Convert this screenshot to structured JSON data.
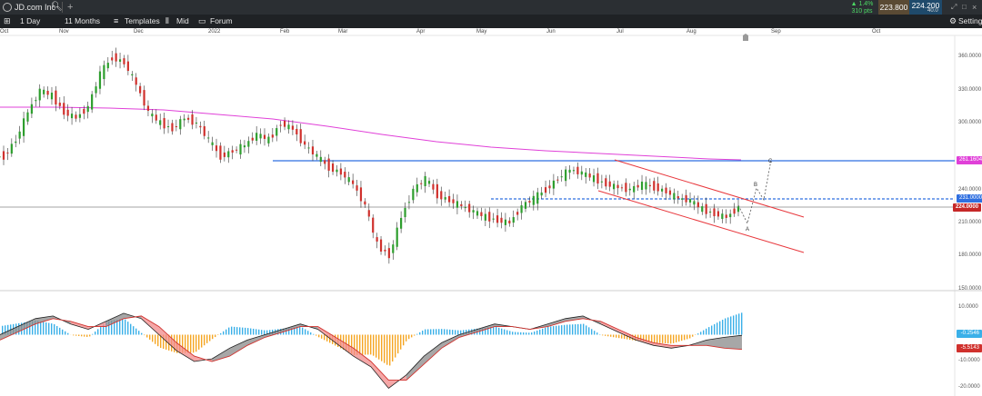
{
  "window": {
    "instrument": "JD.com Inc",
    "change_pct": "▲ 1.4%",
    "change_pts": "310 pts",
    "bid": "223.800",
    "ask": "224.200",
    "spread": "40.0"
  },
  "toolbar": {
    "interval": "1 Day",
    "range": "11 Months",
    "templates": "Templates",
    "mid": "Mid",
    "forum": "Forum",
    "settings": "Settings"
  },
  "time_axis": [
    "Oct",
    "Nov",
    "Dec",
    "2022",
    "Feb",
    "Mar",
    "Apr",
    "May",
    "Jun",
    "Jul",
    "Aug",
    "Sep",
    "Oct"
  ],
  "price_axis": [
    "360.0000",
    "330.0000",
    "300.0000",
    "240.0000",
    "210.0000",
    "180.0000",
    "150.0000"
  ],
  "macd_axis": [
    "10.0000",
    "-10.0000",
    "-20.0000"
  ],
  "tags": {
    "resistance": "261.1604",
    "dashed": "231.0000",
    "last": "224.0000",
    "macd_blue": "-0.2546",
    "macd_red": "-5.5143"
  },
  "annotations": {
    "a": "A",
    "b": "B",
    "c": "C"
  },
  "colors": {
    "up": "#2e9e2e",
    "down": "#d0312d",
    "ma": "#e040d8",
    "resistance": "#2f6fe0",
    "channel": "#e8383d",
    "hist_pos": "#3ab0e8",
    "hist_neg": "#f5a623"
  },
  "chart_data": [
    {
      "type": "candlestick",
      "x": [
        "Oct",
        "Nov",
        "Dec",
        "2022",
        "Feb",
        "Mar",
        "Apr",
        "May",
        "Jun",
        "Jul",
        "Aug",
        "Sep",
        "Oct"
      ],
      "ylim": [
        150,
        375
      ],
      "levels": {
        "horizontal_resistance": 261.1604,
        "dashed_support": 231.0,
        "last_price": 224.0
      },
      "ohlc_close_approx": [
        270,
        285,
        310,
        330,
        325,
        310,
        305,
        315,
        345,
        360,
        355,
        335,
        310,
        300,
        295,
        305,
        300,
        285,
        270,
        275,
        280,
        290,
        285,
        300,
        295,
        280,
        270,
        260,
        255,
        245,
        225,
        190,
        180,
        215,
        240,
        250,
        235,
        230,
        225,
        220,
        215,
        212,
        210,
        225,
        232,
        240,
        250,
        258,
        255,
        250,
        245,
        242,
        240,
        245,
        242,
        238,
        232,
        230,
        222,
        218,
        215,
        224
      ]
    },
    {
      "type": "macd",
      "ylim": [
        -22,
        14
      ],
      "series": [
        {
          "name": "-0.2546",
          "values": [
            0,
            3,
            6,
            7,
            4,
            2,
            5,
            8,
            6,
            0,
            -6,
            -10,
            -9,
            -5,
            -2,
            0,
            2,
            4,
            2,
            -3,
            -8,
            -12,
            -20,
            -15,
            -8,
            -3,
            0,
            2,
            4,
            3,
            2,
            4,
            6,
            7,
            4,
            1,
            -2,
            -4,
            -5,
            -4,
            -2,
            -1,
            -0.25
          ]
        },
        {
          "name": "-5.5143",
          "values": [
            -2,
            1,
            4,
            6,
            5,
            3,
            3,
            6,
            7,
            3,
            -3,
            -8,
            -10,
            -8,
            -4,
            -1,
            1,
            3,
            3,
            -1,
            -5,
            -10,
            -17,
            -17,
            -11,
            -5,
            -1,
            1,
            3,
            3,
            2,
            3,
            5,
            6,
            5,
            2,
            -1,
            -3,
            -4,
            -4,
            -4,
            -5,
            -5.5
          ]
        }
      ]
    }
  ]
}
